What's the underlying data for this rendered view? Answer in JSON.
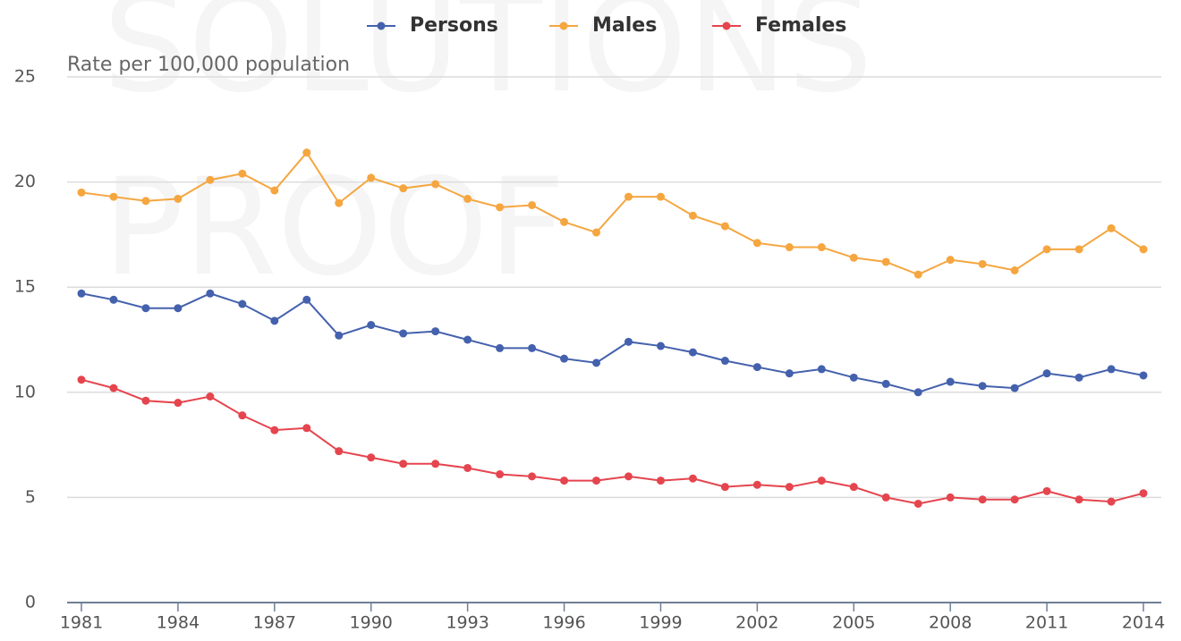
{
  "chart_data": {
    "type": "line",
    "watermark": [
      "SOLUTIONS",
      "PROOF"
    ],
    "y_label": "Rate per 100,000 population",
    "x": [
      1981,
      1982,
      1983,
      1984,
      1985,
      1986,
      1987,
      1988,
      1989,
      1990,
      1991,
      1992,
      1993,
      1994,
      1995,
      1996,
      1997,
      1998,
      1999,
      2000,
      2001,
      2002,
      2003,
      2004,
      2005,
      2006,
      2007,
      2008,
      2009,
      2010,
      2011,
      2012,
      2013,
      2014
    ],
    "xlim": [
      1981,
      2014
    ],
    "xticks": [
      1981,
      1984,
      1987,
      1990,
      1993,
      1996,
      1999,
      2002,
      2005,
      2008,
      2011,
      2014
    ],
    "ylim": [
      0,
      25
    ],
    "yticks": [
      0,
      5,
      10,
      15,
      20,
      25
    ],
    "grid": true,
    "legend": "top",
    "series": [
      {
        "name": "Persons",
        "color": "#4461ad",
        "values": [
          14.7,
          14.4,
          14.0,
          14.0,
          14.7,
          14.2,
          13.4,
          14.4,
          12.7,
          13.2,
          12.8,
          12.9,
          12.5,
          12.1,
          12.1,
          11.6,
          11.4,
          12.4,
          12.2,
          11.9,
          11.5,
          11.2,
          10.9,
          11.1,
          10.7,
          10.4,
          10.0,
          10.5,
          10.3,
          10.2,
          10.9,
          10.7,
          11.1,
          10.8
        ]
      },
      {
        "name": "Males",
        "color": "#f5a640",
        "values": [
          19.5,
          19.3,
          19.1,
          19.2,
          20.1,
          20.4,
          19.6,
          21.4,
          19.0,
          20.2,
          19.7,
          19.9,
          19.2,
          18.8,
          18.9,
          18.1,
          17.6,
          19.3,
          19.3,
          18.4,
          17.9,
          17.1,
          16.9,
          16.9,
          16.4,
          16.2,
          15.6,
          16.3,
          16.1,
          15.8,
          16.8,
          16.8,
          17.8,
          16.8
        ]
      },
      {
        "name": "Females",
        "color": "#e5454e",
        "values": [
          10.6,
          10.2,
          9.6,
          9.5,
          9.8,
          8.9,
          8.2,
          8.3,
          7.2,
          6.9,
          6.6,
          6.6,
          6.4,
          6.1,
          6.0,
          5.8,
          5.8,
          6.0,
          5.8,
          5.9,
          5.5,
          5.6,
          5.5,
          5.8,
          5.5,
          5.0,
          4.7,
          5.0,
          4.9,
          4.9,
          5.3,
          4.9,
          4.8,
          5.2
        ]
      }
    ]
  }
}
